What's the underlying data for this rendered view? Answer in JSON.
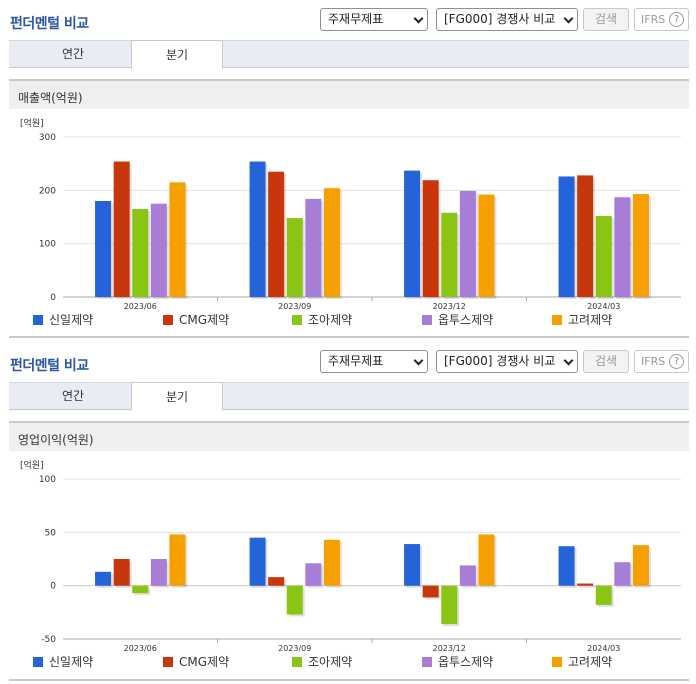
{
  "panels": [
    {
      "header": {
        "title": "펀더멘털 비교",
        "select_statement": "주재무제표",
        "select_compare": "[FG000] 경쟁사 비교",
        "search_label": "검색",
        "ifrs_label": "IFRS",
        "help_label": "?"
      },
      "tabs": [
        "연간",
        "분기"
      ],
      "active_tab": 1,
      "section_title": "매출액(억원)",
      "chart_data": {
        "type": "bar",
        "unit_label": "[억원]",
        "categories": [
          "2023/06",
          "2023/09",
          "2023/12",
          "2024/03"
        ],
        "ylim": [
          0,
          300
        ],
        "yticks": [
          0,
          100,
          200,
          300
        ],
        "grid": true,
        "legend_position": "bottom",
        "series": [
          {
            "name": "신일제약",
            "color": "#2563d9",
            "values": [
              180,
              254,
              237,
              226
            ]
          },
          {
            "name": "CMG제약",
            "color": "#c8360c",
            "values": [
              254,
              235,
              219,
              228
            ]
          },
          {
            "name": "조아제약",
            "color": "#8ac515",
            "values": [
              165,
              148,
              158,
              152
            ]
          },
          {
            "name": "옵투스제약",
            "color": "#a77dd8",
            "values": [
              175,
              184,
              199,
              187
            ]
          },
          {
            "name": "고려제약",
            "color": "#f6a000",
            "values": [
              215,
              204,
              192,
              193
            ]
          }
        ]
      }
    },
    {
      "header": {
        "title": "펀더멘털 비교",
        "select_statement": "주재무제표",
        "select_compare": "[FG000] 경쟁사 비교",
        "search_label": "검색",
        "ifrs_label": "IFRS",
        "help_label": "?"
      },
      "tabs": [
        "연간",
        "분기"
      ],
      "active_tab": 1,
      "section_title": "영업이익(억원)",
      "chart_data": {
        "type": "bar",
        "unit_label": "[억원]",
        "categories": [
          "2023/06",
          "2023/09",
          "2023/12",
          "2024/03"
        ],
        "ylim": [
          -50,
          100
        ],
        "yticks": [
          -50,
          0,
          50,
          100
        ],
        "grid": true,
        "legend_position": "bottom",
        "series": [
          {
            "name": "신일제약",
            "color": "#2563d9",
            "values": [
              13,
              45,
              39,
              37
            ]
          },
          {
            "name": "CMG제약",
            "color": "#c8360c",
            "values": [
              25,
              8,
              -11,
              2
            ]
          },
          {
            "name": "조아제약",
            "color": "#8ac515",
            "values": [
              -7,
              -27,
              -36,
              -18
            ]
          },
          {
            "name": "옵투스제약",
            "color": "#a77dd8",
            "values": [
              25,
              21,
              19,
              22
            ]
          },
          {
            "name": "고려제약",
            "color": "#f6a000",
            "values": [
              48,
              43,
              48,
              38
            ]
          }
        ]
      }
    }
  ]
}
